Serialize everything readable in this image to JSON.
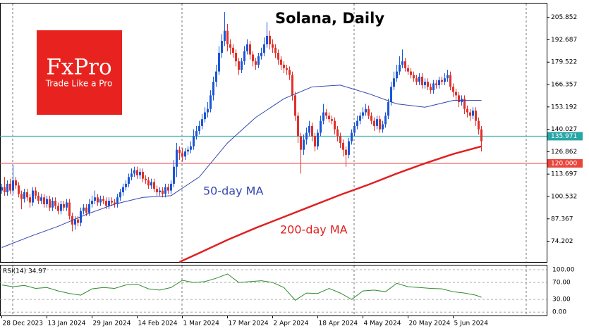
{
  "chart_data": [
    {
      "type": "candlestick",
      "title": "Solana, Daily",
      "logo": {
        "brand": "FxPro",
        "slogan": "Trade Like a Pro"
      },
      "up_color": "#1a56d6",
      "down_color": "#e0302a",
      "open": [
        104,
        106,
        103,
        108,
        104,
        110,
        107,
        102,
        99,
        103,
        100,
        97,
        104,
        101,
        98,
        100,
        96,
        99,
        94,
        98,
        95,
        92,
        96,
        94,
        97,
        89,
        84,
        87,
        85,
        92,
        94,
        91,
        96,
        98,
        100,
        97,
        99,
        98,
        95,
        98,
        97,
        96,
        100,
        103,
        106,
        108,
        112,
        114,
        116,
        113,
        115,
        111,
        110,
        107,
        109,
        105,
        103,
        104,
        102,
        106,
        104,
        108,
        118,
        128,
        126,
        124,
        127,
        128,
        130,
        136,
        139,
        142,
        146,
        150,
        152,
        160,
        168,
        174,
        185,
        192,
        198,
        190,
        188,
        185,
        180,
        175,
        180,
        186,
        190,
        184,
        180,
        178,
        183,
        185,
        190,
        195,
        190,
        188,
        185,
        181,
        178,
        176,
        175,
        172,
        160,
        148,
        136,
        128,
        134,
        138,
        142,
        136,
        130,
        138,
        145,
        150,
        148,
        146,
        145,
        140,
        136,
        132,
        128,
        125,
        133,
        138,
        142,
        145,
        148,
        150,
        152,
        148,
        145,
        142,
        146,
        140,
        143,
        148,
        156,
        165,
        170,
        174,
        178,
        180,
        176,
        174,
        172,
        170,
        168,
        171,
        166,
        168,
        165,
        163,
        167,
        166,
        169,
        168,
        170,
        172,
        165,
        162,
        160,
        156,
        158,
        152,
        150,
        148,
        151,
        145,
        140
      ],
      "high": [
        108,
        112,
        110,
        111,
        119,
        112,
        109,
        104,
        105,
        105,
        102,
        106,
        106,
        103,
        102,
        102,
        101,
        101,
        100,
        100,
        97,
        98,
        98,
        99,
        99,
        91,
        89,
        89,
        94,
        96,
        96,
        99,
        101,
        104,
        102,
        101,
        101,
        100,
        100,
        100,
        99,
        102,
        105,
        108,
        110,
        114,
        117,
        118,
        118,
        117,
        117,
        113,
        112,
        111,
        111,
        107,
        106,
        106,
        108,
        108,
        110,
        122,
        132,
        130,
        129,
        129,
        130,
        133,
        140,
        142,
        145,
        149,
        153,
        156,
        163,
        171,
        178,
        189,
        196,
        209,
        202,
        193,
        190,
        187,
        182,
        182,
        189,
        193,
        192,
        186,
        182,
        185,
        188,
        194,
        203,
        198,
        193,
        190,
        187,
        183,
        180,
        178,
        177,
        174,
        162,
        150,
        138,
        137,
        141,
        145,
        144,
        138,
        140,
        148,
        155,
        152,
        150,
        148,
        147,
        142,
        138,
        134,
        130,
        135,
        140,
        144,
        148,
        150,
        153,
        155,
        154,
        150,
        147,
        148,
        148,
        145,
        150,
        158,
        168,
        174,
        178,
        183,
        187,
        182,
        178,
        176,
        174,
        172,
        173,
        173,
        170,
        170,
        167,
        169,
        169,
        171,
        171,
        173,
        175,
        174,
        167,
        164,
        162,
        160,
        160,
        154,
        152,
        153,
        153,
        147,
        142
      ],
      "low": [
        102,
        101,
        101,
        102,
        102,
        105,
        100,
        93,
        97,
        98,
        94,
        95,
        99,
        96,
        96,
        94,
        94,
        92,
        92,
        93,
        90,
        90,
        92,
        92,
        87,
        80,
        81,
        83,
        83,
        90,
        89,
        89,
        94,
        96,
        95,
        95,
        96,
        93,
        93,
        95,
        94,
        94,
        98,
        101,
        104,
        106,
        110,
        112,
        111,
        111,
        109,
        108,
        105,
        105,
        103,
        101,
        101,
        100,
        100,
        102,
        102,
        106,
        112,
        122,
        121,
        122,
        125,
        126,
        128,
        134,
        137,
        140,
        144,
        147,
        150,
        157,
        165,
        172,
        182,
        189,
        186,
        184,
        182,
        177,
        172,
        173,
        178,
        184,
        181,
        177,
        175,
        176,
        181,
        183,
        188,
        187,
        185,
        182,
        178,
        175,
        173,
        172,
        169,
        157,
        145,
        132,
        114,
        125,
        131,
        136,
        133,
        127,
        128,
        136,
        143,
        146,
        144,
        143,
        137,
        133,
        129,
        124,
        118,
        123,
        131,
        136,
        140,
        143,
        146,
        148,
        146,
        143,
        139,
        140,
        138,
        138,
        141,
        146,
        154,
        163,
        168,
        172,
        176,
        174,
        172,
        170,
        168,
        166,
        166,
        164,
        164,
        163,
        161,
        161,
        164,
        164,
        166,
        166,
        168,
        163,
        159,
        157,
        153,
        154,
        149,
        147,
        145,
        146,
        142,
        137,
        127
      ],
      "close": [
        106,
        103,
        108,
        104,
        110,
        107,
        102,
        99,
        103,
        100,
        97,
        104,
        101,
        98,
        100,
        96,
        99,
        94,
        98,
        95,
        92,
        96,
        94,
        97,
        89,
        84,
        87,
        85,
        92,
        94,
        91,
        96,
        98,
        100,
        97,
        99,
        98,
        95,
        98,
        97,
        96,
        100,
        103,
        106,
        108,
        112,
        114,
        116,
        113,
        115,
        111,
        110,
        107,
        109,
        105,
        103,
        104,
        102,
        106,
        104,
        108,
        118,
        128,
        126,
        124,
        127,
        128,
        130,
        136,
        139,
        142,
        146,
        150,
        152,
        160,
        168,
        174,
        185,
        192,
        198,
        190,
        188,
        185,
        180,
        175,
        180,
        186,
        190,
        184,
        180,
        178,
        183,
        185,
        190,
        195,
        190,
        188,
        185,
        181,
        178,
        176,
        175,
        172,
        160,
        148,
        136,
        128,
        134,
        138,
        142,
        136,
        130,
        138,
        145,
        150,
        148,
        146,
        145,
        140,
        136,
        132,
        128,
        125,
        133,
        138,
        142,
        145,
        148,
        150,
        152,
        148,
        145,
        142,
        146,
        140,
        143,
        148,
        156,
        165,
        170,
        174,
        178,
        180,
        176,
        174,
        172,
        170,
        168,
        171,
        166,
        168,
        165,
        163,
        167,
        166,
        169,
        168,
        170,
        172,
        165,
        162,
        160,
        156,
        158,
        152,
        150,
        148,
        151,
        145,
        140,
        133
      ],
      "series": [
        {
          "name": "50-day MA",
          "color": "#3446b0",
          "x": [
            0,
            10,
            20,
            30,
            40,
            50,
            60,
            70,
            80,
            90,
            100,
            110,
            120,
            130,
            140,
            150,
            160,
            170
          ],
          "values": [
            70.5,
            77,
            83,
            90,
            96,
            100,
            101,
            112,
            132,
            147,
            158,
            165,
            166,
            161,
            155,
            153,
            157,
            157
          ]
        },
        {
          "name": "200-day MA",
          "color": "#e02020",
          "x": [
            63,
            70,
            80,
            90,
            100,
            110,
            120,
            130,
            140,
            150,
            160,
            170
          ],
          "values": [
            62,
            67.3,
            75,
            82,
            88.5,
            95,
            101.5,
            107.5,
            114,
            120,
            125.5,
            130
          ]
        }
      ],
      "hlines": [
        {
          "value": 135.971,
          "color": "#2aa6a6"
        },
        {
          "value": 120,
          "label": "120.000",
          "color": "#e8463c"
        }
      ],
      "ylim": [
        62,
        214
      ],
      "yticks": [
        74.202,
        87.367,
        100.532,
        113.697,
        126.862,
        140.027,
        153.192,
        166.357,
        179.522,
        192.687,
        205.852
      ],
      "xticks": [
        {
          "value": 0,
          "label": "28 Dec 2023"
        },
        {
          "value": 16,
          "label": "13 Jan 2024"
        },
        {
          "value": 32,
          "label": "29 Jan 2024"
        },
        {
          "value": 48,
          "label": "14 Feb 2024"
        },
        {
          "value": 64,
          "label": "1 Mar 2024"
        },
        {
          "value": 80,
          "label": "17 Mar 2024"
        },
        {
          "value": 96,
          "label": "2 Apr 2024"
        },
        {
          "value": 112,
          "label": "18 Apr 2024"
        },
        {
          "value": 128,
          "label": "4 May 2024"
        },
        {
          "value": 144,
          "label": "20 May 2024"
        },
        {
          "value": 160,
          "label": "5 Jun 2024"
        }
      ]
    },
    {
      "type": "line",
      "title": "RSI(14) 34.97",
      "color": "#2e8b2e",
      "x": [
        0,
        4,
        8,
        12,
        16,
        20,
        24,
        28,
        32,
        36,
        40,
        44,
        48,
        52,
        56,
        60,
        64,
        68,
        72,
        76,
        80,
        84,
        88,
        92,
        96,
        100,
        104,
        108,
        112,
        116,
        120,
        124,
        128,
        132,
        136,
        140,
        144,
        148,
        152,
        156,
        160,
        164,
        168,
        170
      ],
      "values": [
        64,
        60,
        63,
        56,
        58,
        50,
        44,
        40,
        55,
        58,
        56,
        64,
        66,
        55,
        52,
        58,
        75,
        70,
        72,
        80,
        90,
        70,
        72,
        74,
        70,
        58,
        28,
        45,
        44,
        56,
        45,
        30,
        50,
        52,
        48,
        68,
        60,
        58,
        56,
        55,
        48,
        45,
        40,
        34.97
      ],
      "ylim": [
        -8,
        110
      ],
      "yticks": [
        {
          "value": 100,
          "label": "100.00"
        },
        {
          "value": 70,
          "label": "70.00"
        },
        {
          "value": 30,
          "label": "30.00"
        },
        {
          "value": 0,
          "label": "0.00"
        }
      ]
    }
  ]
}
